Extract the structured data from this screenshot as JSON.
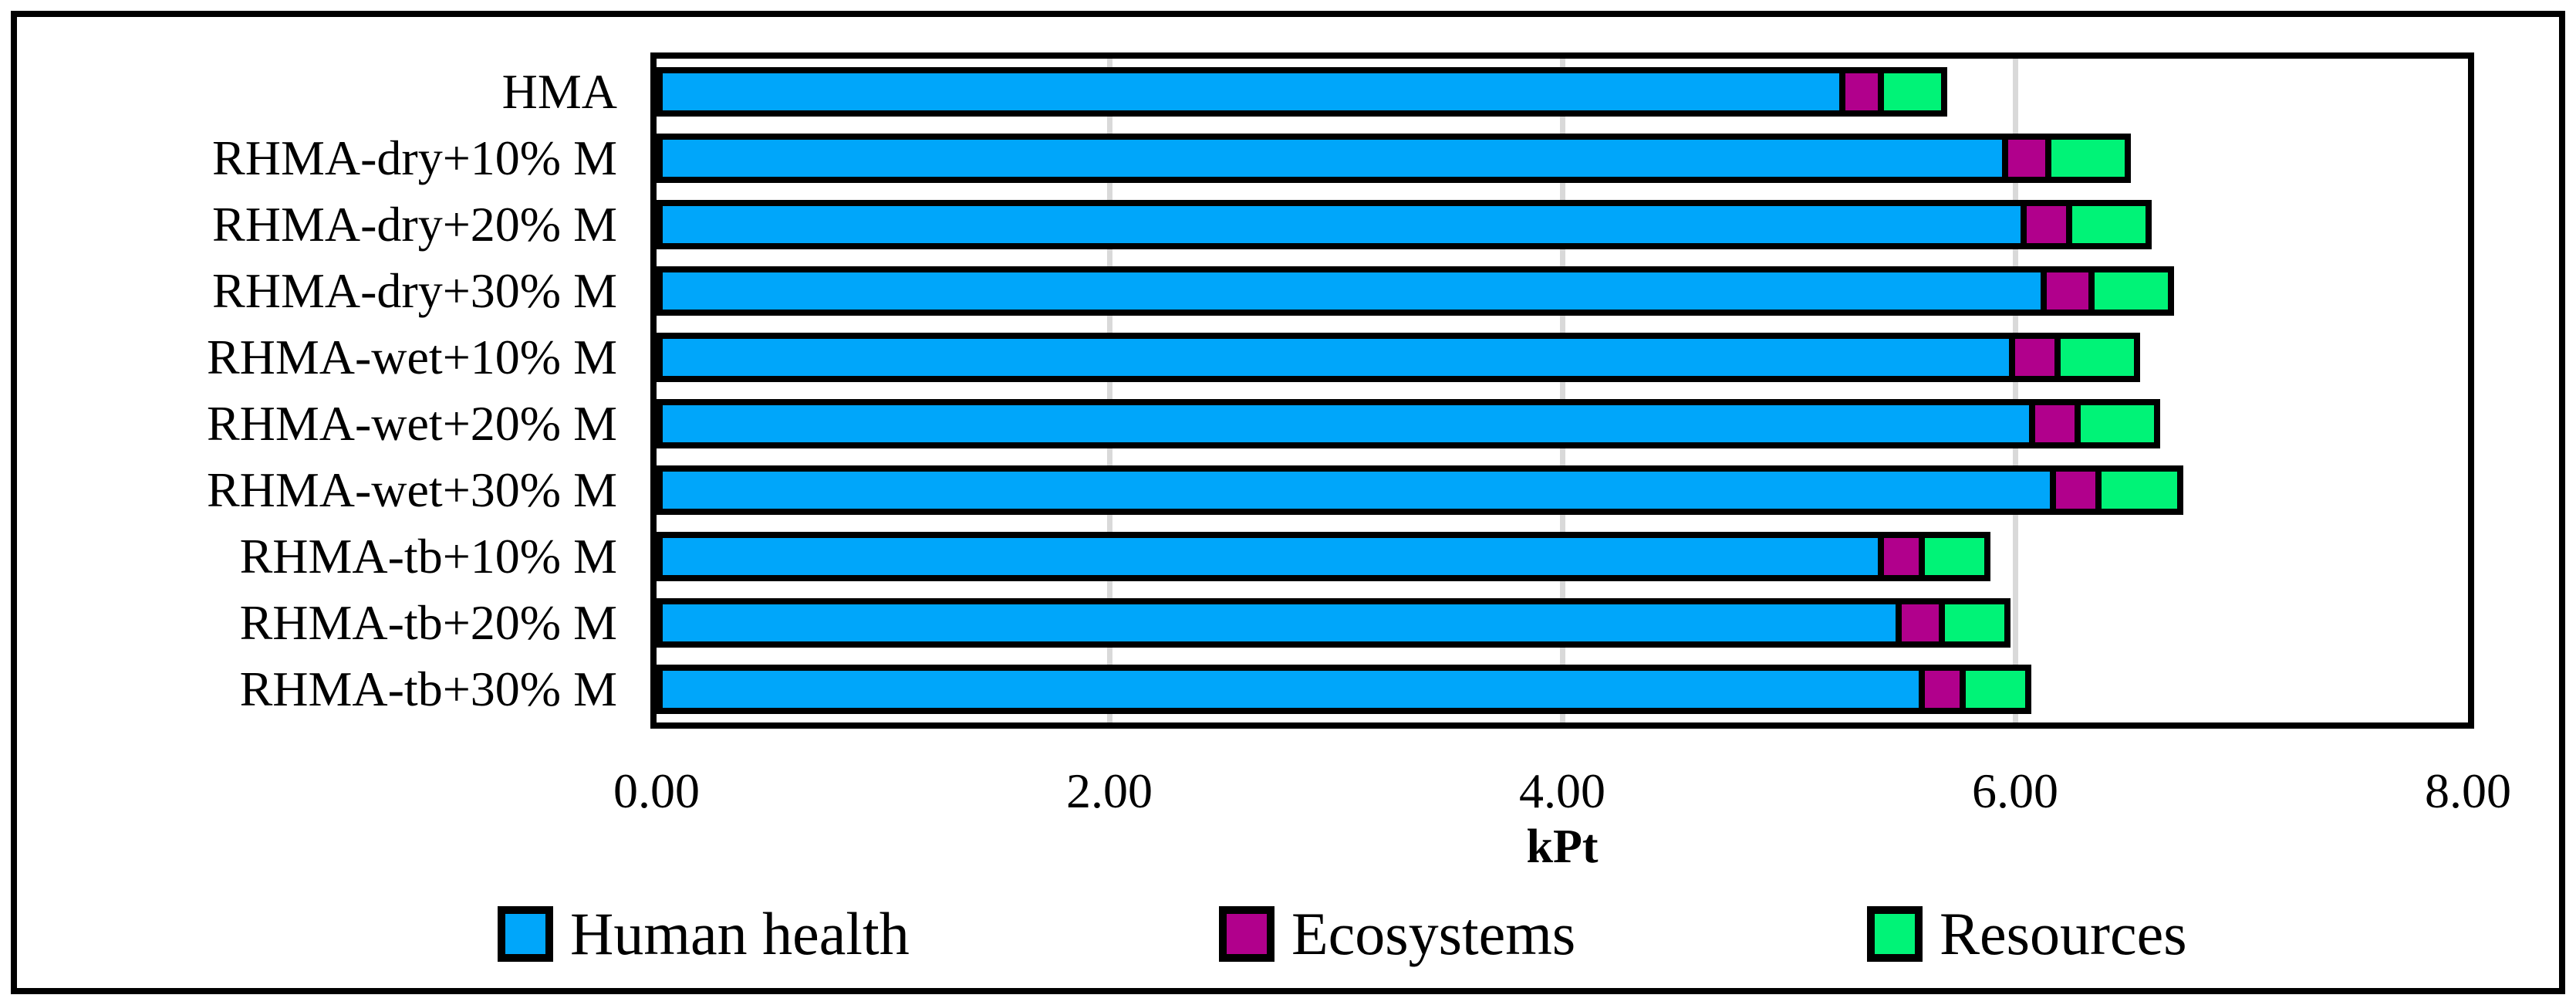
{
  "chart_data": {
    "type": "bar",
    "orientation": "horizontal",
    "stacked": true,
    "title": "",
    "xlabel": "kPt",
    "ylabel": "",
    "xlim": [
      0,
      8
    ],
    "xticks": [
      "0.00",
      "2.00",
      "4.00",
      "6.00",
      "8.00"
    ],
    "xtick_values": [
      0,
      2,
      4,
      6,
      8
    ],
    "gridline_values": [
      2,
      4,
      6
    ],
    "gridline_color": "#D9D9D9",
    "bar_border_color": "#000000",
    "legend_position": "bottom",
    "categories": [
      "HMA",
      "RHMA-dry+10% M",
      "RHMA-dry+20% M",
      "RHMA-dry+30% M",
      "RHMA-wet+10% M",
      "RHMA-wet+20% M",
      "RHMA-wet+30% M",
      "RHMA-tb+10% M",
      "RHMA-tb+20% M",
      "RHMA-tb+30% M"
    ],
    "series": [
      {
        "name": "Human health",
        "color": "#00A6FA",
        "values": [
          5.25,
          5.97,
          6.05,
          6.14,
          6.0,
          6.09,
          6.18,
          5.42,
          5.5,
          5.6
        ]
      },
      {
        "name": "Ecosystems",
        "color": "#B1008C",
        "values": [
          0.17,
          0.19,
          0.2,
          0.21,
          0.2,
          0.2,
          0.2,
          0.18,
          0.19,
          0.18
        ]
      },
      {
        "name": "Resources",
        "color": "#00F377",
        "values": [
          0.28,
          0.35,
          0.35,
          0.35,
          0.35,
          0.35,
          0.36,
          0.29,
          0.29,
          0.29
        ]
      }
    ]
  }
}
